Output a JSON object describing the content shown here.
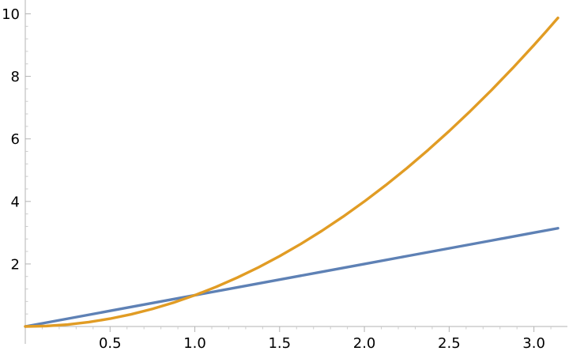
{
  "chart_data": {
    "type": "line",
    "title": "",
    "xlabel": "",
    "ylabel": "",
    "xlim": [
      0,
      3.14159
    ],
    "ylim": [
      0,
      10
    ],
    "grid": false,
    "legend": "none",
    "x_ticks": [
      {
        "value": 0.5,
        "label": "0.5"
      },
      {
        "value": 1.0,
        "label": "1.0"
      },
      {
        "value": 1.5,
        "label": "1.5"
      },
      {
        "value": 2.0,
        "label": "2.0"
      },
      {
        "value": 2.5,
        "label": "2.5"
      },
      {
        "value": 3.0,
        "label": "3.0"
      }
    ],
    "y_ticks": [
      {
        "value": 2,
        "label": "2"
      },
      {
        "value": 4,
        "label": "4"
      },
      {
        "value": 6,
        "label": "6"
      },
      {
        "value": 8,
        "label": "8"
      },
      {
        "value": 10,
        "label": "10"
      }
    ],
    "series": [
      {
        "color": "#5e81b5",
        "x": [
          0,
          0.25,
          0.5,
          0.75,
          1.0,
          1.25,
          1.5,
          1.75,
          2.0,
          2.25,
          2.5,
          2.75,
          3.0,
          3.14159
        ],
        "y": [
          0,
          0.25,
          0.5,
          0.75,
          1.0,
          1.25,
          1.5,
          1.75,
          2.0,
          2.25,
          2.5,
          2.75,
          3.0,
          3.14159
        ]
      },
      {
        "color": "#e19c24",
        "x": [
          0,
          0.125,
          0.25,
          0.375,
          0.5,
          0.625,
          0.75,
          0.875,
          1.0,
          1.125,
          1.25,
          1.375,
          1.5,
          1.625,
          1.75,
          1.875,
          2.0,
          2.125,
          2.25,
          2.375,
          2.5,
          2.625,
          2.75,
          2.875,
          3.0,
          3.07,
          3.14159
        ],
        "y": [
          0,
          0.0156,
          0.0625,
          0.1406,
          0.25,
          0.3906,
          0.5625,
          0.7656,
          1.0,
          1.2656,
          1.5625,
          1.8906,
          2.25,
          2.6406,
          3.0625,
          3.5156,
          4.0,
          4.5156,
          5.0625,
          5.6406,
          6.25,
          6.8906,
          7.5625,
          8.2656,
          9.0,
          9.4249,
          9.8696
        ]
      }
    ]
  }
}
